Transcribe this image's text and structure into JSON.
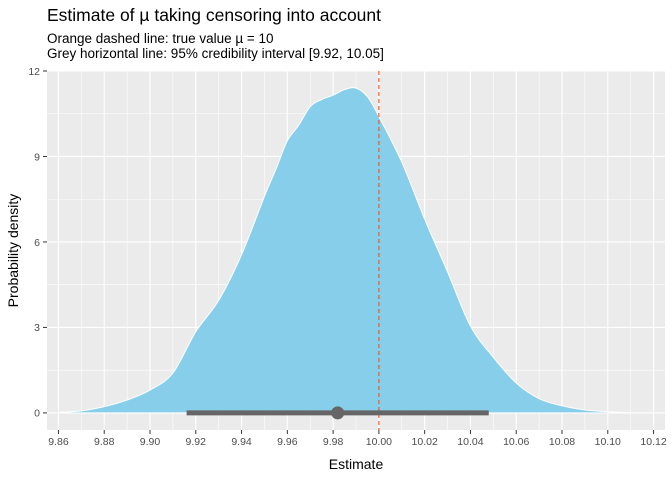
{
  "chart_data": {
    "type": "area",
    "title": "Estimate of µ taking censoring into account",
    "subtitle_lines": [
      "Orange dashed line: true value µ = 10",
      "Grey horizontal line: 95% credibility interval [9.92, 10.05]"
    ],
    "xlabel": "Estimate",
    "ylabel": "Probability density",
    "xlim": [
      9.855,
      10.125
    ],
    "ylim": [
      -0.6,
      12.0
    ],
    "x_ticks": [
      9.86,
      9.88,
      9.9,
      9.92,
      9.94,
      9.96,
      9.98,
      10.0,
      10.02,
      10.04,
      10.06,
      10.08,
      10.1,
      10.12
    ],
    "x_tick_labels": [
      "9.86",
      "9.88",
      "9.90",
      "9.92",
      "9.94",
      "9.96",
      "9.98",
      "10.00",
      "10.02",
      "10.04",
      "10.06",
      "10.08",
      "10.10",
      "10.12"
    ],
    "y_ticks": [
      0,
      3,
      6,
      9,
      12
    ],
    "y_tick_labels": [
      "0",
      "3",
      "6",
      "9",
      "12"
    ],
    "grid": true,
    "density": {
      "x": [
        9.86,
        9.87,
        9.88,
        9.89,
        9.9,
        9.91,
        9.92,
        9.93,
        9.94,
        9.95,
        9.955,
        9.96,
        9.965,
        9.97,
        9.975,
        9.98,
        9.985,
        9.99,
        9.995,
        10.0,
        10.01,
        10.02,
        10.03,
        10.04,
        10.05,
        10.06,
        10.07,
        10.08,
        10.09,
        10.1,
        10.11
      ],
      "y": [
        0.02,
        0.07,
        0.22,
        0.45,
        0.8,
        1.4,
        2.85,
        3.95,
        5.55,
        7.6,
        8.55,
        9.55,
        10.1,
        10.75,
        11.0,
        11.15,
        11.35,
        11.4,
        11.1,
        10.4,
        8.8,
        6.8,
        4.95,
        3.05,
        1.95,
        1.05,
        0.5,
        0.25,
        0.1,
        0.04,
        0.01
      ],
      "fill": "#87ceeb",
      "stroke": "#ffffff"
    },
    "true_value": {
      "x": 10.0,
      "color": "#ff4500",
      "style": "dashed"
    },
    "credible_interval": {
      "low": 9.916,
      "high": 10.048,
      "point": 9.982,
      "color": "#666666"
    },
    "panel_background": "#ebebeb",
    "grid_color": "#ffffff"
  }
}
